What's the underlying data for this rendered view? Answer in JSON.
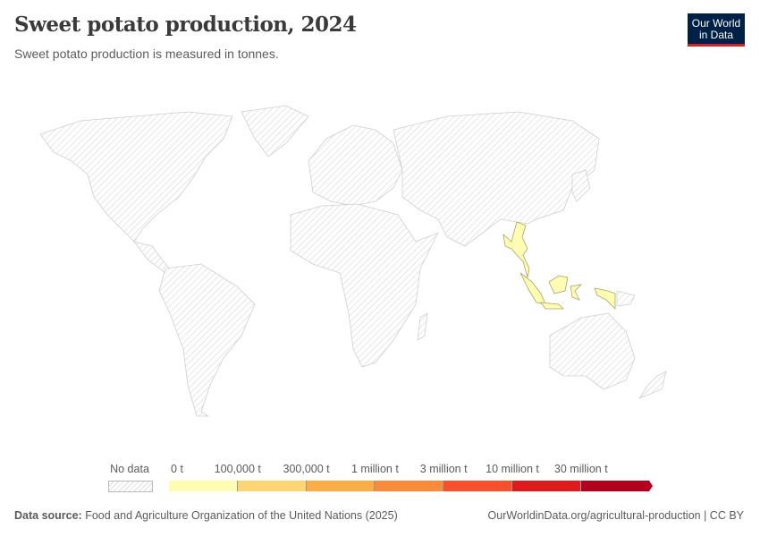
{
  "header": {
    "title": "Sweet potato production, 2024",
    "subtitle": "Sweet potato production is measured in tonnes.",
    "logo_text": "Our World in Data"
  },
  "map": {
    "highlighted_countries": [
      {
        "name": "Myanmar",
        "bin": "0 t – 100,000 t",
        "color": "#fefdb1"
      },
      {
        "name": "Indonesia",
        "bin": "0 t – 100,000 t",
        "color": "#fefdb1"
      }
    ],
    "no_data_style": "hatched-gray"
  },
  "legend": {
    "no_data_label": "No data",
    "labels": [
      "0 t",
      "100,000 t",
      "300,000 t",
      "1 million t",
      "3 million t",
      "10 million t",
      "30 million t"
    ],
    "colors": [
      "#fefdb1",
      "#fed574",
      "#fcad47",
      "#fb8a3a",
      "#f8502d",
      "#df1b1e",
      "#b3001f"
    ]
  },
  "footer": {
    "source_label": "Data source:",
    "source_text": "Food and Agriculture Organization of the United Nations (2025)",
    "url_text": "OurWorldinData.org/agricultural-production | CC BY"
  }
}
